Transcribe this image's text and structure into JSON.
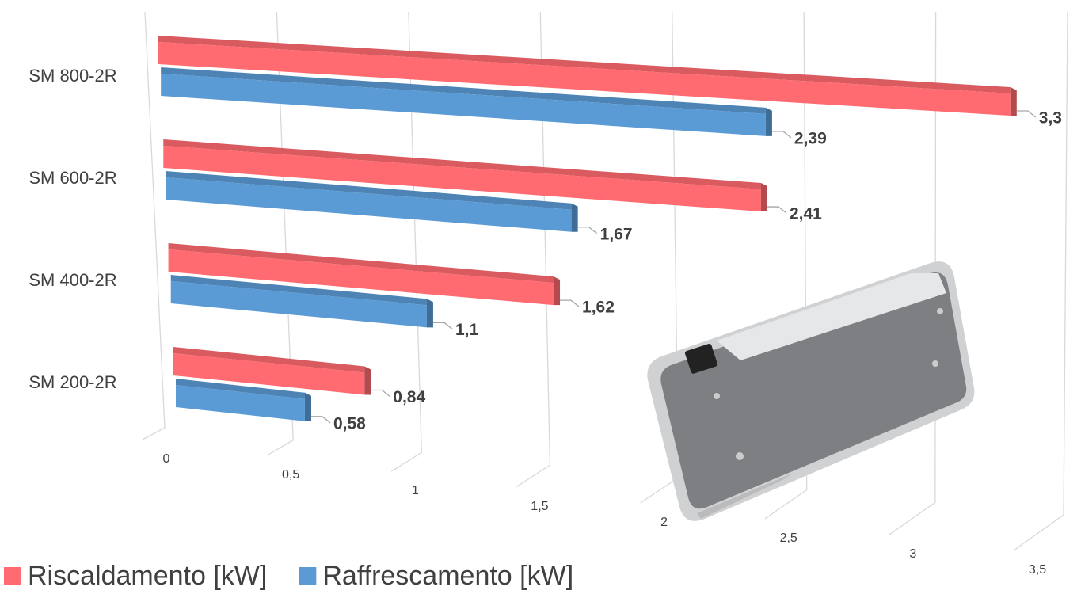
{
  "chart_data": {
    "type": "bar3d",
    "categories": [
      "SM 800-2R",
      "SM 600-2R",
      "SM 400-2R",
      "SM 200-2R"
    ],
    "series": [
      {
        "name": "Riscaldamento [kW]",
        "color": "#ff6b70",
        "values": [
          3.3,
          2.41,
          1.62,
          0.84
        ],
        "value_labels": [
          "3,3",
          "2,41",
          "1,62",
          "0,84"
        ]
      },
      {
        "name": "Raffrescamento [kW]",
        "color": "#5b9bd5",
        "values": [
          2.39,
          1.67,
          1.1,
          0.58
        ],
        "value_labels": [
          "2,39",
          "1,67",
          "1,1",
          "0,58"
        ]
      }
    ],
    "xlim": [
      0,
      3.5
    ],
    "xticks": [
      0,
      {
        "value": 0.5,
        "label": "0,5"
      },
      1,
      {
        "value": 1.5,
        "label": "1,5"
      },
      2,
      {
        "value": 2.5,
        "label": "2,5"
      },
      3,
      {
        "value": 3.5,
        "label": "3,5"
      }
    ],
    "grid": true,
    "legend": "bottom-left"
  }
}
